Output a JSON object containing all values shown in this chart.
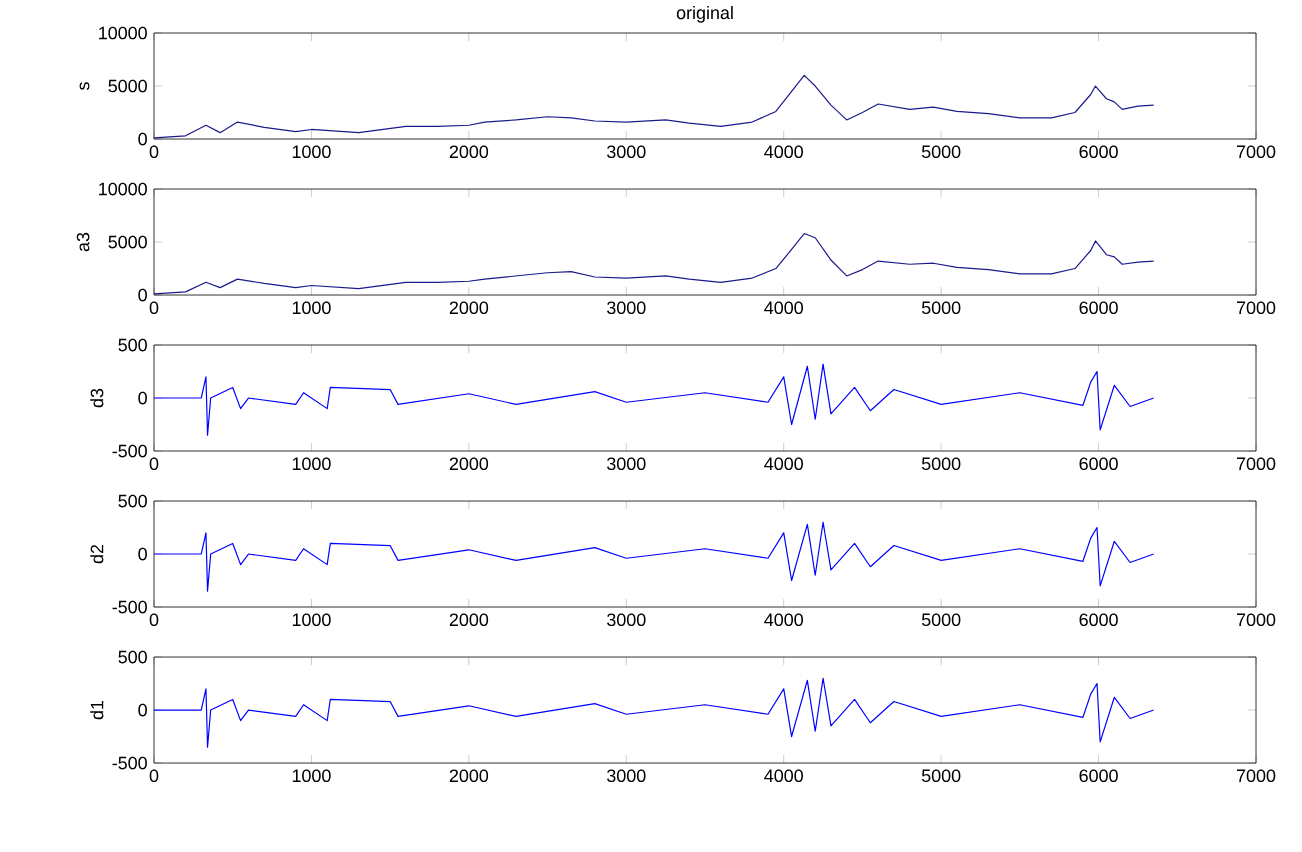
{
  "chart_data": [
    {
      "type": "line",
      "title": "original",
      "ylabel": "s",
      "color": "#1a1a8c",
      "xlim": [
        0,
        7000
      ],
      "ylim": [
        0,
        10000
      ],
      "xticks": [
        0,
        1000,
        2000,
        3000,
        4000,
        5000,
        6000,
        7000
      ],
      "yticks": [
        0,
        5000,
        10000
      ],
      "x": [
        0,
        200,
        330,
        420,
        530,
        700,
        900,
        1000,
        1300,
        1600,
        1800,
        2000,
        2100,
        2300,
        2500,
        2650,
        2800,
        3000,
        3250,
        3400,
        3600,
        3800,
        3950,
        4050,
        4130,
        4200,
        4300,
        4400,
        4500,
        4600,
        4800,
        4950,
        5100,
        5300,
        5500,
        5700,
        5850,
        5950,
        5980,
        6050,
        6100,
        6150,
        6250,
        6350
      ],
      "values": [
        100,
        300,
        1300,
        600,
        1600,
        1100,
        700,
        900,
        600,
        1200,
        1200,
        1300,
        1600,
        1800,
        2100,
        2000,
        1700,
        1600,
        1800,
        1500,
        1200,
        1600,
        2600,
        4500,
        6000,
        5000,
        3200,
        1800,
        2500,
        3300,
        2800,
        3000,
        2600,
        2400,
        2000,
        2000,
        2500,
        4200,
        5000,
        3800,
        3500,
        2800,
        3100,
        3200
      ]
    },
    {
      "type": "line",
      "ylabel": "a3",
      "color": "#1a1a8c",
      "xlim": [
        0,
        7000
      ],
      "ylim": [
        0,
        10000
      ],
      "xticks": [
        0,
        1000,
        2000,
        3000,
        4000,
        5000,
        6000,
        7000
      ],
      "yticks": [
        0,
        5000,
        10000
      ],
      "x": [
        0,
        200,
        330,
        420,
        530,
        700,
        900,
        1000,
        1300,
        1600,
        1800,
        2000,
        2100,
        2300,
        2500,
        2650,
        2800,
        3000,
        3250,
        3400,
        3600,
        3800,
        3950,
        4050,
        4130,
        4200,
        4300,
        4400,
        4500,
        4600,
        4800,
        4950,
        5100,
        5300,
        5500,
        5700,
        5850,
        5950,
        5980,
        6050,
        6100,
        6150,
        6250,
        6350
      ],
      "values": [
        100,
        300,
        1200,
        700,
        1500,
        1100,
        700,
        900,
        600,
        1200,
        1200,
        1300,
        1500,
        1800,
        2100,
        2200,
        1700,
        1600,
        1800,
        1500,
        1200,
        1600,
        2500,
        4300,
        5800,
        5400,
        3300,
        1800,
        2400,
        3200,
        2900,
        3000,
        2600,
        2400,
        2000,
        2000,
        2500,
        4200,
        5100,
        3800,
        3600,
        2900,
        3100,
        3200
      ]
    },
    {
      "type": "line",
      "ylabel": "d3",
      "color": "#0000ff",
      "xlim": [
        0,
        7000
      ],
      "ylim": [
        -500,
        500
      ],
      "xticks": [
        0,
        1000,
        2000,
        3000,
        4000,
        5000,
        6000,
        7000
      ],
      "yticks": [
        -500,
        0,
        500
      ],
      "x": [
        0,
        300,
        330,
        340,
        360,
        500,
        550,
        600,
        900,
        950,
        1100,
        1120,
        1500,
        1550,
        2000,
        2300,
        2800,
        3000,
        3500,
        3900,
        4000,
        4050,
        4150,
        4200,
        4250,
        4300,
        4450,
        4550,
        4700,
        5000,
        5500,
        5900,
        5950,
        5990,
        6010,
        6100,
        6200,
        6350
      ],
      "values": [
        0,
        0,
        200,
        -350,
        0,
        100,
        -100,
        0,
        -60,
        50,
        -100,
        100,
        80,
        -60,
        40,
        -60,
        60,
        -40,
        50,
        -40,
        200,
        -250,
        300,
        -200,
        320,
        -150,
        100,
        -120,
        80,
        -60,
        50,
        -70,
        150,
        250,
        -300,
        120,
        -80,
        0
      ]
    },
    {
      "type": "line",
      "ylabel": "d2",
      "color": "#0000ff",
      "xlim": [
        0,
        7000
      ],
      "ylim": [
        -500,
        500
      ],
      "xticks": [
        0,
        1000,
        2000,
        3000,
        4000,
        5000,
        6000,
        7000
      ],
      "yticks": [
        -500,
        0,
        500
      ],
      "x": [
        0,
        300,
        330,
        340,
        360,
        500,
        550,
        600,
        900,
        950,
        1100,
        1120,
        1500,
        1550,
        2000,
        2300,
        2800,
        3000,
        3500,
        3900,
        4000,
        4050,
        4150,
        4200,
        4250,
        4300,
        4450,
        4550,
        4700,
        5000,
        5500,
        5900,
        5950,
        5990,
        6010,
        6100,
        6200,
        6350
      ],
      "values": [
        0,
        0,
        200,
        -350,
        0,
        100,
        -100,
        0,
        -60,
        50,
        -100,
        100,
        80,
        -60,
        40,
        -60,
        60,
        -40,
        50,
        -40,
        200,
        -250,
        280,
        -200,
        300,
        -150,
        100,
        -120,
        80,
        -60,
        50,
        -70,
        150,
        250,
        -300,
        120,
        -80,
        0
      ]
    },
    {
      "type": "line",
      "ylabel": "d1",
      "color": "#0000ff",
      "xlim": [
        0,
        7000
      ],
      "ylim": [
        -500,
        500
      ],
      "xticks": [
        0,
        1000,
        2000,
        3000,
        4000,
        5000,
        6000,
        7000
      ],
      "yticks": [
        -500,
        0,
        500
      ],
      "x": [
        0,
        300,
        330,
        340,
        360,
        500,
        550,
        600,
        900,
        950,
        1100,
        1120,
        1500,
        1550,
        2000,
        2300,
        2800,
        3000,
        3500,
        3900,
        4000,
        4050,
        4150,
        4200,
        4250,
        4300,
        4450,
        4550,
        4700,
        5000,
        5500,
        5900,
        5950,
        5990,
        6010,
        6100,
        6200,
        6350
      ],
      "values": [
        0,
        0,
        200,
        -350,
        0,
        100,
        -100,
        0,
        -60,
        50,
        -100,
        100,
        80,
        -60,
        40,
        -60,
        60,
        -40,
        50,
        -40,
        200,
        -250,
        280,
        -200,
        300,
        -150,
        100,
        -120,
        80,
        -60,
        50,
        -70,
        150,
        250,
        -300,
        120,
        -80,
        0
      ]
    }
  ]
}
